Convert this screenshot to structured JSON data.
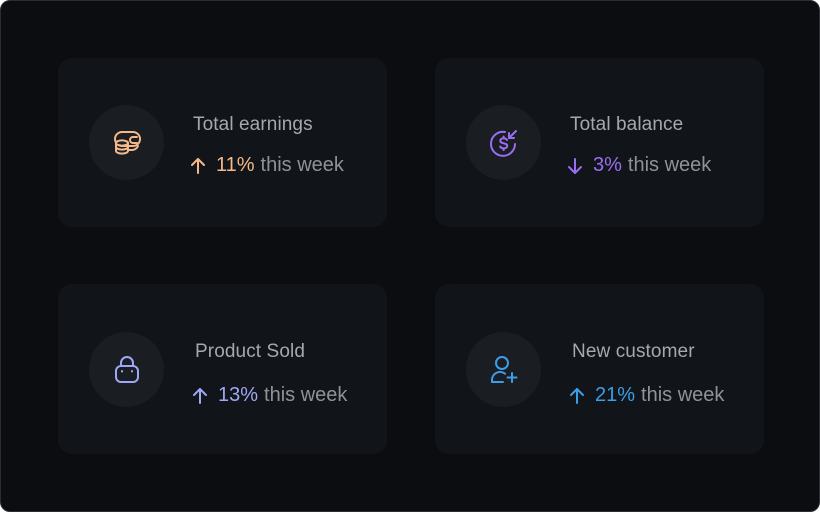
{
  "colors": {
    "background": "#0b0d11",
    "card": "#111419",
    "icon_circle": "#1a1d22",
    "title_text": "#a5a8ae",
    "suffix_text": "#8f9298"
  },
  "cards": [
    {
      "title": "Total earnings",
      "icon": "coins-wallet-icon",
      "trend": "up",
      "trend_icon": "arrow-up-icon",
      "percent": "11%",
      "suffix": "this week",
      "accent": "#f4b98a"
    },
    {
      "title": "Total balance",
      "icon": "dollar-refresh-icon",
      "trend": "down",
      "trend_icon": "arrow-down-icon",
      "percent": "3%",
      "suffix": "this week",
      "accent": "#9a6ef2"
    },
    {
      "title": "Product Sold",
      "icon": "shopping-bag-icon",
      "trend": "up",
      "trend_icon": "arrow-up-icon",
      "percent": "13%",
      "suffix": "this week",
      "accent": "#9fa8f4"
    },
    {
      "title": "New customer",
      "icon": "user-add-icon",
      "trend": "up",
      "trend_icon": "arrow-up-icon",
      "percent": "21%",
      "suffix": "this week",
      "accent": "#3a9ee8"
    }
  ]
}
